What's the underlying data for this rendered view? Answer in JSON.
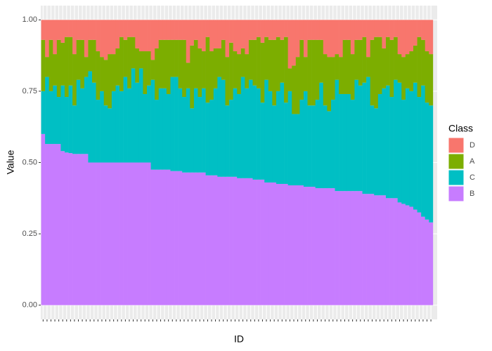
{
  "chart_data": {
    "type": "stacked_bar",
    "x_label": "ID",
    "y_label": "Value",
    "legend_title": "Class",
    "categories": [
      null,
      null,
      null,
      null,
      null,
      null,
      null,
      null,
      null,
      null,
      null,
      null,
      null,
      null,
      null,
      null,
      null,
      null,
      null,
      null,
      null,
      null,
      null,
      null,
      null,
      null,
      null,
      null,
      null,
      null,
      null,
      null,
      null,
      null,
      null,
      null,
      null,
      null,
      null,
      null,
      null,
      null,
      null,
      null,
      null,
      null,
      null,
      null,
      null,
      null,
      null,
      null,
      null,
      null,
      null,
      null,
      null,
      null,
      null,
      null,
      null,
      null,
      null,
      null,
      null,
      null,
      null,
      null,
      null,
      null,
      null,
      null,
      null,
      null,
      null,
      null,
      null,
      null,
      null,
      null,
      null,
      null,
      null,
      null,
      null,
      null,
      null,
      null,
      null,
      null,
      null,
      null,
      null,
      null,
      null,
      null,
      null,
      null,
      null,
      null
    ],
    "series": [
      {
        "name": "D",
        "color": "#F8766D",
        "values": [
          0.07,
          0.13,
          0.07,
          0.12,
          0.07,
          0.08,
          0.06,
          0.06,
          0.12,
          0.07,
          0.07,
          0.13,
          0.07,
          0.07,
          0.11,
          0.13,
          0.14,
          0.12,
          0.12,
          0.1,
          0.06,
          0.07,
          0.06,
          0.06,
          0.1,
          0.11,
          0.11,
          0.11,
          0.14,
          0.1,
          0.07,
          0.07,
          0.07,
          0.07,
          0.07,
          0.07,
          0.07,
          0.15,
          0.09,
          0.07,
          0.1,
          0.11,
          0.06,
          0.11,
          0.1,
          0.1,
          0.07,
          0.13,
          0.08,
          0.11,
          0.12,
          0.1,
          0.12,
          0.07,
          0.07,
          0.06,
          0.08,
          0.06,
          0.07,
          0.07,
          0.06,
          0.07,
          0.06,
          0.17,
          0.16,
          0.13,
          0.07,
          0.13,
          0.07,
          0.07,
          0.07,
          0.07,
          0.12,
          0.13,
          0.13,
          0.12,
          0.13,
          0.07,
          0.07,
          0.12,
          0.07,
          0.07,
          0.06,
          0.13,
          0.07,
          0.06,
          0.06,
          0.1,
          0.06,
          0.07,
          0.06,
          0.12,
          0.13,
          0.12,
          0.11,
          0.09,
          0.06,
          0.07,
          0.11,
          0.12
        ]
      },
      {
        "name": "A",
        "color": "#7CAE00",
        "values": [
          0.18,
          0.07,
          0.18,
          0.11,
          0.2,
          0.15,
          0.21,
          0.17,
          0.18,
          0.14,
          0.17,
          0.07,
          0.11,
          0.15,
          0.17,
          0.12,
          0.16,
          0.19,
          0.13,
          0.13,
          0.19,
          0.13,
          0.18,
          0.11,
          0.12,
          0.06,
          0.15,
          0.12,
          0.07,
          0.18,
          0.17,
          0.17,
          0.19,
          0.13,
          0.13,
          0.17,
          0.2,
          0.09,
          0.22,
          0.17,
          0.17,
          0.13,
          0.23,
          0.17,
          0.14,
          0.1,
          0.14,
          0.17,
          0.2,
          0.13,
          0.14,
          0.1,
          0.12,
          0.14,
          0.16,
          0.18,
          0.21,
          0.15,
          0.18,
          0.23,
          0.19,
          0.15,
          0.23,
          0.08,
          0.17,
          0.2,
          0.21,
          0.12,
          0.23,
          0.23,
          0.21,
          0.15,
          0.18,
          0.19,
          0.15,
          0.09,
          0.13,
          0.19,
          0.19,
          0.16,
          0.14,
          0.16,
          0.16,
          0.07,
          0.23,
          0.25,
          0.2,
          0.14,
          0.17,
          0.2,
          0.15,
          0.1,
          0.15,
          0.12,
          0.14,
          0.13,
          0.21,
          0.16,
          0.18,
          0.18
        ]
      },
      {
        "name": "C",
        "color": "#00BFC4",
        "values": [
          0.15,
          0.235,
          0.185,
          0.205,
          0.165,
          0.23,
          0.195,
          0.237,
          0.17,
          0.26,
          0.23,
          0.27,
          0.32,
          0.28,
          0.22,
          0.25,
          0.2,
          0.19,
          0.25,
          0.27,
          0.25,
          0.3,
          0.26,
          0.33,
          0.28,
          0.33,
          0.24,
          0.27,
          0.315,
          0.245,
          0.285,
          0.285,
          0.265,
          0.33,
          0.33,
          0.29,
          0.265,
          0.295,
          0.225,
          0.295,
          0.265,
          0.295,
          0.255,
          0.265,
          0.305,
          0.35,
          0.34,
          0.25,
          0.27,
          0.31,
          0.295,
          0.355,
          0.315,
          0.345,
          0.33,
          0.32,
          0.27,
          0.36,
          0.32,
          0.27,
          0.325,
          0.355,
          0.285,
          0.33,
          0.25,
          0.25,
          0.3,
          0.335,
          0.285,
          0.285,
          0.31,
          0.37,
          0.29,
          0.27,
          0.31,
          0.39,
          0.34,
          0.34,
          0.34,
          0.32,
          0.39,
          0.37,
          0.39,
          0.41,
          0.31,
          0.305,
          0.355,
          0.375,
          0.395,
          0.355,
          0.415,
          0.42,
          0.365,
          0.41,
          0.405,
          0.445,
          0.405,
          0.46,
          0.41,
          0.41
        ]
      },
      {
        "name": "B",
        "color": "#C77CFF",
        "values": [
          0.6,
          0.565,
          0.565,
          0.565,
          0.565,
          0.54,
          0.535,
          0.533,
          0.53,
          0.53,
          0.53,
          0.53,
          0.5,
          0.5,
          0.5,
          0.5,
          0.5,
          0.5,
          0.5,
          0.5,
          0.5,
          0.5,
          0.5,
          0.5,
          0.5,
          0.5,
          0.5,
          0.5,
          0.475,
          0.475,
          0.475,
          0.475,
          0.475,
          0.47,
          0.47,
          0.47,
          0.465,
          0.465,
          0.465,
          0.465,
          0.465,
          0.465,
          0.455,
          0.455,
          0.455,
          0.45,
          0.45,
          0.45,
          0.45,
          0.45,
          0.445,
          0.445,
          0.445,
          0.445,
          0.44,
          0.44,
          0.44,
          0.43,
          0.43,
          0.43,
          0.425,
          0.425,
          0.425,
          0.42,
          0.42,
          0.42,
          0.42,
          0.415,
          0.415,
          0.415,
          0.41,
          0.41,
          0.41,
          0.41,
          0.41,
          0.4,
          0.4,
          0.4,
          0.4,
          0.4,
          0.4,
          0.4,
          0.39,
          0.39,
          0.39,
          0.385,
          0.385,
          0.385,
          0.375,
          0.375,
          0.375,
          0.36,
          0.355,
          0.35,
          0.345,
          0.335,
          0.325,
          0.31,
          0.3,
          0.29
        ]
      }
    ],
    "ylim": [
      -0.05,
      1.05
    ],
    "yticks": [
      {
        "value": 0,
        "label": "0.00"
      },
      {
        "value": 0.25,
        "label": "0.25"
      },
      {
        "value": 0.5,
        "label": "0.50"
      },
      {
        "value": 0.75,
        "label": "0.75"
      },
      {
        "value": 1,
        "label": "1.00"
      }
    ],
    "grid": true
  }
}
